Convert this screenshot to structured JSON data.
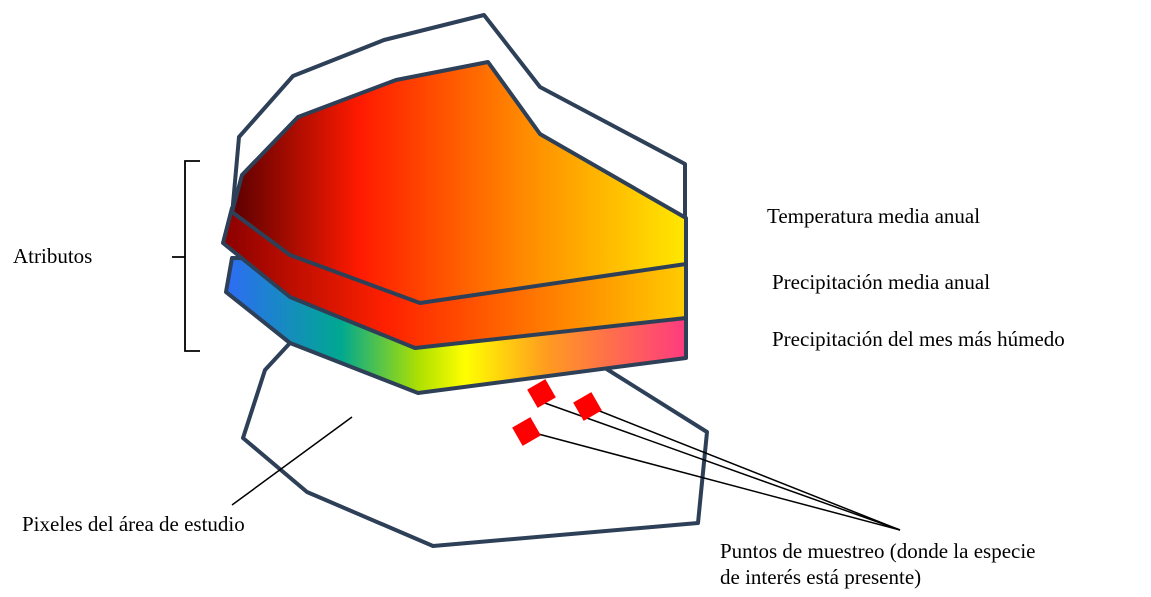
{
  "labels": {
    "atributos": "Atributos",
    "layer_temp": "Temperatura media anual",
    "layer_precip": "Precipitación media anual",
    "layer_precip_humid": "Precipitación del mes más húmedo",
    "pixels": "Pixeles del área de estudio",
    "points_line1": "Puntos de muestreo (donde la especie",
    "points_line2": "de interés está presente)"
  },
  "colors": {
    "outline": "#2e4057",
    "sample_point": "#ff0000",
    "temp_gradient": [
      "#5a0000",
      "#ff1a00",
      "#ff8c00",
      "#ffe800"
    ],
    "precip_gradient": [
      "#8b0000",
      "#ff2000",
      "#ffcc00"
    ],
    "humid_gradient": [
      "#2e6cf5",
      "#00a890",
      "#aee000",
      "#ffff00",
      "#ff9a20",
      "#ff3a80"
    ]
  }
}
